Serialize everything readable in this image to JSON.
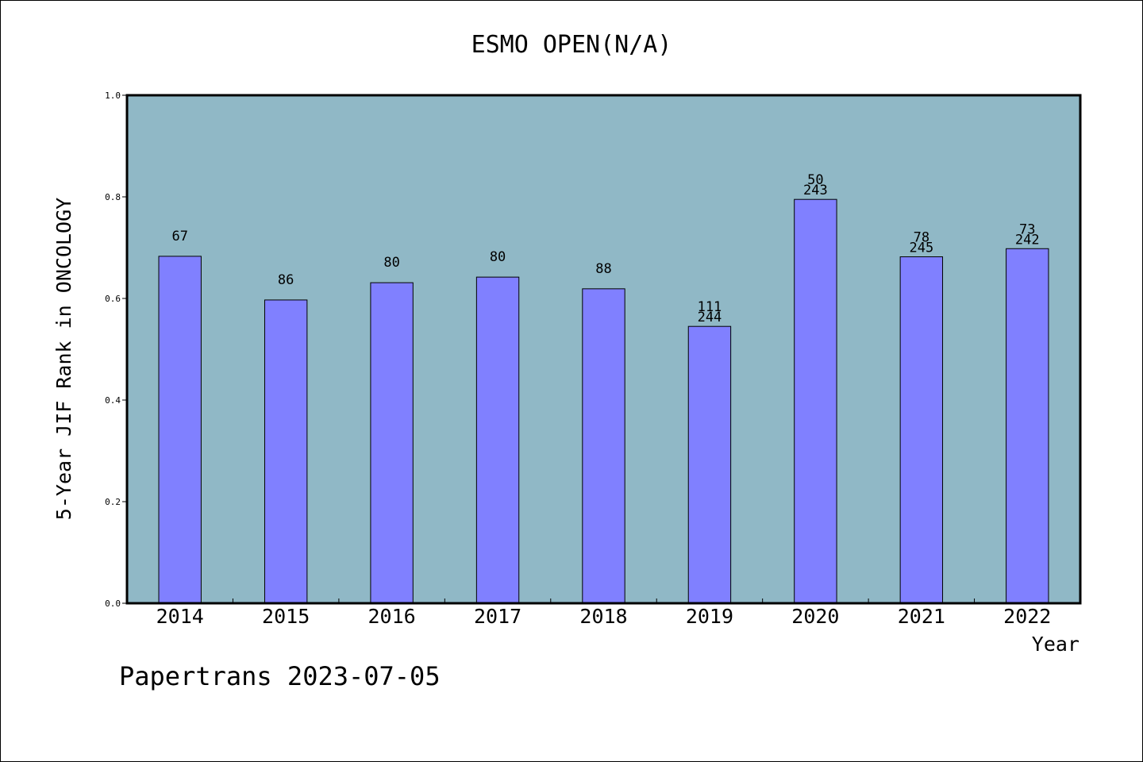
{
  "chart_data": {
    "type": "bar",
    "title": "ESMO OPEN(N/A)",
    "xlabel": "Year",
    "ylabel": "5-Year JIF Rank in ONCOLOGY",
    "ylim": [
      0,
      1.0
    ],
    "yticks": [
      "0.0",
      "0.2",
      "0.4",
      "0.6",
      "0.8",
      "1.0"
    ],
    "categories": [
      "2014",
      "2015",
      "2016",
      "2017",
      "2018",
      "2019",
      "2020",
      "2021",
      "2022"
    ],
    "values": [
      0.683,
      0.597,
      0.631,
      0.642,
      0.619,
      0.545,
      0.795,
      0.682,
      0.698
    ],
    "labels": [
      [
        "67"
      ],
      [
        "86"
      ],
      [
        "80"
      ],
      [
        "80"
      ],
      [
        "88"
      ],
      [
        "111",
        "244"
      ],
      [
        "50",
        "243"
      ],
      [
        "78",
        "245"
      ],
      [
        "73",
        "242"
      ]
    ],
    "grid": false,
    "colors": {
      "plot_bg": "#90b8c6",
      "bar": "#8080ff"
    }
  },
  "footer": "Papertrans 2023-07-05"
}
